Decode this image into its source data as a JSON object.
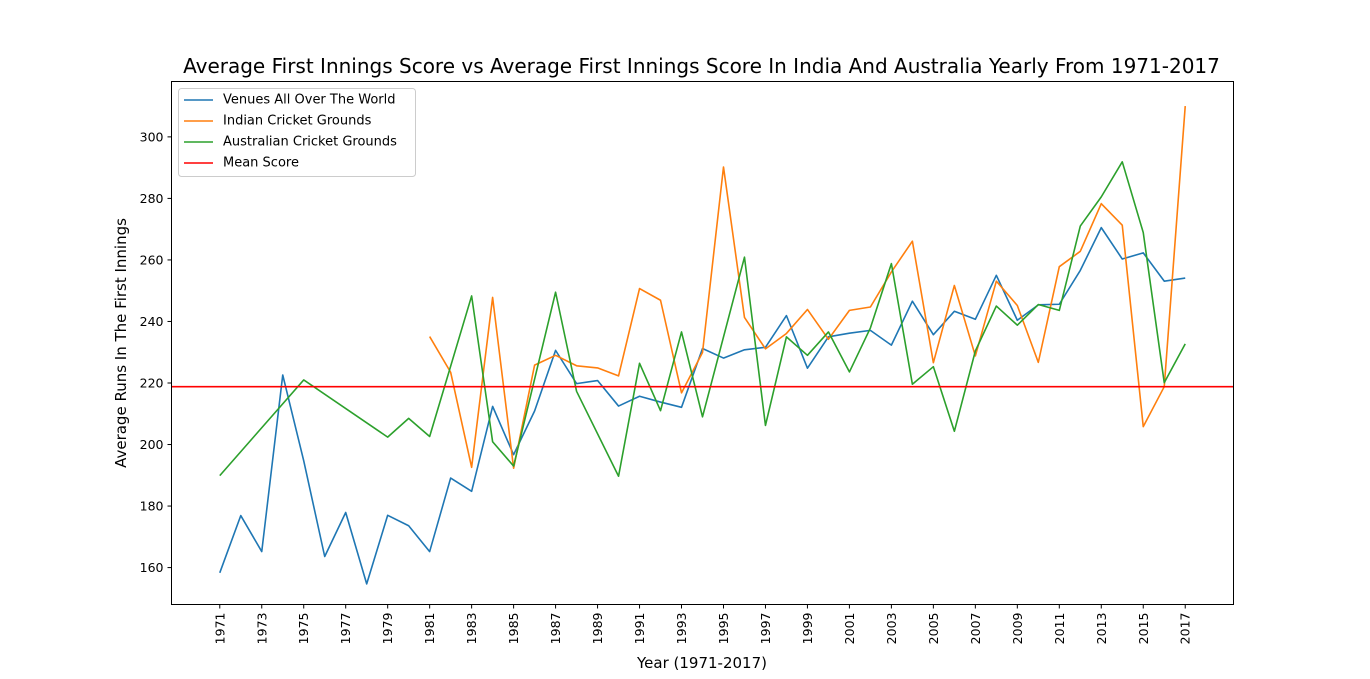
{
  "chart_data": {
    "type": "line",
    "title": "Average First Innings Score vs Average First Innings Score In India And Australia Yearly From 1971-2017",
    "xlabel": "Year (1971-2017)",
    "ylabel": "Average Runs In The First Innings",
    "xlim": [
      1968.7,
      2019.3
    ],
    "ylim": [
      148,
      318
    ],
    "xticks": [
      "1971",
      "1973",
      "1975",
      "1977",
      "1979",
      "1981",
      "1983",
      "1985",
      "1987",
      "1989",
      "1991",
      "1993",
      "1995",
      "1997",
      "1999",
      "2001",
      "2003",
      "2005",
      "2007",
      "2009",
      "2011",
      "2013",
      "2015",
      "2017"
    ],
    "yticks": [
      "160",
      "180",
      "200",
      "220",
      "240",
      "260",
      "280",
      "300"
    ],
    "legend_position": "upper-left",
    "grid": false,
    "mean_score": 218.8,
    "series": [
      {
        "name": "Venues All Over The World",
        "color": "#1f77b4",
        "x": [
          1971,
          1972,
          1973,
          1974,
          1975,
          1976,
          1977,
          1978,
          1979,
          1980,
          1981,
          1982,
          1983,
          1984,
          1985,
          1986,
          1987,
          1988,
          1989,
          1990,
          1991,
          1992,
          1993,
          1994,
          1995,
          1996,
          1997,
          1998,
          1999,
          2000,
          2001,
          2002,
          2003,
          2004,
          2005,
          2006,
          2007,
          2008,
          2009,
          2010,
          2011,
          2012,
          2013,
          2014,
          2015,
          2016,
          2017
        ],
        "y": [
          158.3,
          176.9,
          165.2,
          222.6,
          194.7,
          163.6,
          177.9,
          154.7,
          177.0,
          173.6,
          165.2,
          189.1,
          184.8,
          212.4,
          196.7,
          210.9,
          230.6,
          219.8,
          220.8,
          212.5,
          215.7,
          213.8,
          212.1,
          231.2,
          228.1,
          230.8,
          231.6,
          241.9,
          224.8,
          235.0,
          236.2,
          237.1,
          232.3,
          246.6,
          235.7,
          243.3,
          240.7,
          255.0,
          240.4,
          245.4,
          245.6,
          256.6,
          270.5,
          260.3,
          262.3,
          253.1,
          254.1
        ]
      },
      {
        "name": "Indian Cricket Grounds",
        "color": "#ff7f0e",
        "x": [
          1981,
          1982,
          1983,
          1984,
          1985,
          1986,
          1987,
          1988,
          1989,
          1990,
          1991,
          1992,
          1993,
          1994,
          1995,
          1996,
          1997,
          1998,
          1999,
          2000,
          2001,
          2002,
          2003,
          2004,
          2005,
          2006,
          2007,
          2008,
          2009,
          2010,
          2011,
          2012,
          2013,
          2014,
          2015,
          2016,
          2017
        ],
        "y": [
          235.1,
          223.5,
          192.6,
          247.8,
          192.3,
          225.8,
          229.0,
          225.6,
          224.9,
          222.3,
          250.7,
          246.9,
          216.8,
          229.9,
          290.2,
          241.3,
          231.1,
          236.1,
          243.9,
          234.2,
          243.6,
          244.7,
          256.1,
          266.1,
          226.6,
          251.7,
          228.8,
          253.1,
          245.2,
          226.7,
          257.8,
          262.8,
          278.3,
          271.3,
          205.8,
          218.8,
          310.0
        ]
      },
      {
        "name": "Australian Cricket Grounds",
        "color": "#2ca02c",
        "x": [
          1971,
          1975,
          1979,
          1980,
          1981,
          1983,
          1984,
          1985,
          1987,
          1988,
          1990,
          1991,
          1992,
          1993,
          1994,
          1996,
          1997,
          1998,
          1999,
          2000,
          2001,
          2002,
          2003,
          2004,
          2005,
          2006,
          2007,
          2008,
          2009,
          2010,
          2011,
          2012,
          2013,
          2014,
          2015,
          2016,
          2017
        ],
        "y": [
          189.9,
          221.0,
          202.4,
          208.5,
          202.6,
          248.3,
          200.9,
          193.0,
          249.5,
          217.3,
          189.7,
          226.4,
          211.0,
          236.6,
          209.0,
          260.9,
          206.2,
          235.0,
          229.0,
          236.6,
          223.6,
          237.9,
          258.8,
          219.6,
          225.3,
          204.3,
          230.4,
          245.0,
          238.8,
          245.5,
          243.6,
          271.0,
          280.5,
          291.9,
          268.9,
          220.1,
          232.7
        ]
      },
      {
        "name": "Mean Score",
        "color": "#ff0000",
        "x": [
          1968.7,
          2019.3
        ],
        "y": [
          218.8,
          218.8
        ]
      }
    ]
  }
}
